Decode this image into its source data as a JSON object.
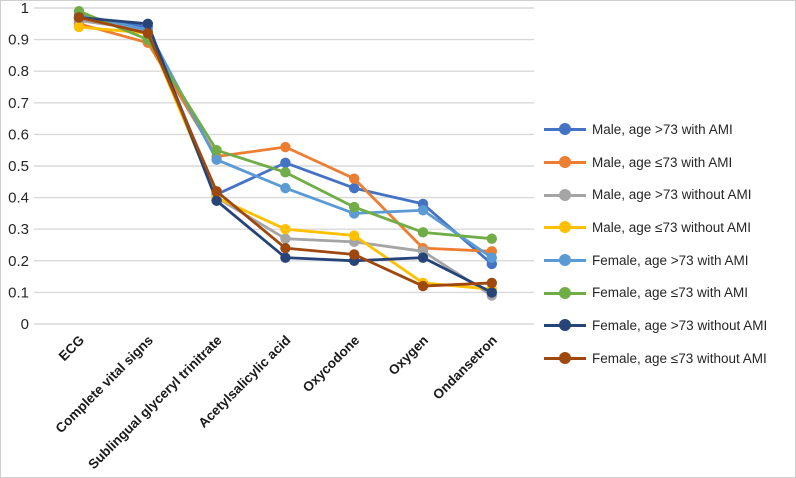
{
  "chart_data": {
    "type": "line",
    "title": "",
    "xlabel": "",
    "ylabel": "",
    "categories": [
      "ECG",
      "Complete vital signs",
      "Sublingual glyceryl trinitrate",
      "Acetylsalicylic acid",
      "Oxycodone",
      "Oxygen",
      "Ondansetron"
    ],
    "series": [
      {
        "name": "Male, age >73 with AMI",
        "color": "#4472C4",
        "values": [
          0.97,
          0.94,
          0.41,
          0.51,
          0.43,
          0.38,
          0.19
        ]
      },
      {
        "name": "Male, age ≤73 with AMI",
        "color": "#ED7D31",
        "values": [
          0.95,
          0.89,
          0.53,
          0.56,
          0.46,
          0.24,
          0.23
        ]
      },
      {
        "name": "Male, age >73 without AMI",
        "color": "#A5A5A5",
        "values": [
          0.96,
          0.93,
          0.4,
          0.27,
          0.26,
          0.23,
          0.09
        ]
      },
      {
        "name": "Male, age ≤73 without AMI",
        "color": "#FFC000",
        "values": [
          0.94,
          0.92,
          0.4,
          0.3,
          0.28,
          0.13,
          0.11
        ]
      },
      {
        "name": "Female, age >73 with AMI",
        "color": "#5B9BD5",
        "values": [
          0.98,
          0.93,
          0.52,
          0.43,
          0.35,
          0.36,
          0.21
        ]
      },
      {
        "name": "Female, age ≤73 with AMI",
        "color": "#70AD47",
        "values": [
          0.99,
          0.9,
          0.55,
          0.48,
          0.37,
          0.29,
          0.27
        ]
      },
      {
        "name": "Female, age >73 without AMI",
        "color": "#264478",
        "values": [
          0.97,
          0.95,
          0.39,
          0.21,
          0.2,
          0.21,
          0.1
        ]
      },
      {
        "name": "Female, age ≤73 without AMI",
        "color": "#9E480E",
        "values": [
          0.97,
          0.92,
          0.42,
          0.24,
          0.22,
          0.12,
          0.13
        ]
      }
    ],
    "ylim": [
      0,
      1
    ],
    "yticks": [
      "0",
      "0.1",
      "0.2",
      "0.3",
      "0.4",
      "0.5",
      "0.6",
      "0.7",
      "0.8",
      "0.9",
      "1"
    ],
    "grid": "horizontal",
    "gridline_color": "#D9D9D9",
    "legend_position": "right",
    "x_tick_rotation_deg": -45
  }
}
